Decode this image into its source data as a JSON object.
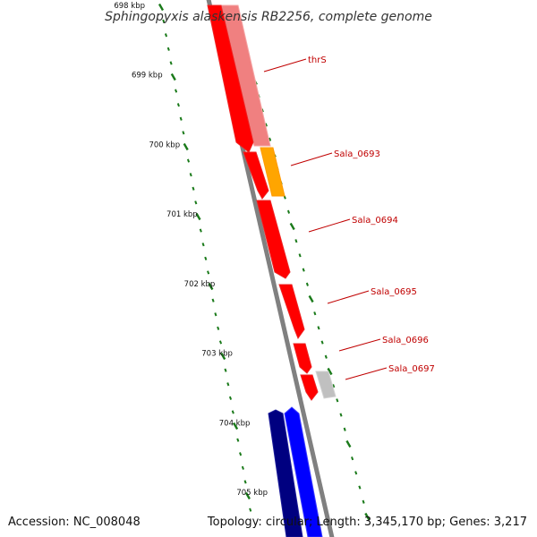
{
  "title": "Sphingopyxis alaskensis RB2256, complete genome",
  "accession_text": "Accession: NC_008048",
  "topology_text": "Topology: circular; Length: 3,345,170 bp; Genes: 3,217",
  "ticks": [
    {
      "label": "698 kbp",
      "bp": 698
    },
    {
      "label": "699 kbp",
      "bp": 699
    },
    {
      "label": "700 kbp",
      "bp": 700
    },
    {
      "label": "701 kbp",
      "bp": 701
    },
    {
      "label": "702 kbp",
      "bp": 702
    },
    {
      "label": "703 kbp",
      "bp": 703
    },
    {
      "label": "704 kbp",
      "bp": 704
    },
    {
      "label": "705 kbp",
      "bp": 705
    }
  ],
  "gene_labels": [
    {
      "name": "thrS"
    },
    {
      "name": "Sala_0693"
    },
    {
      "name": "Sala_0694"
    },
    {
      "name": "Sala_0695"
    },
    {
      "name": "Sala_0696"
    },
    {
      "name": "Sala_0697"
    }
  ],
  "colors": {
    "backbone": "#808080",
    "cds": "#ff0000",
    "gene_feature": "#f08080",
    "trna_feature": "#ffa500",
    "other_feature": "#c0c0c0",
    "reverse_strand_dark": "#000080",
    "reverse_strand": "#0000ff",
    "tick": "#1a7a1a",
    "label_line": "#c00000"
  }
}
